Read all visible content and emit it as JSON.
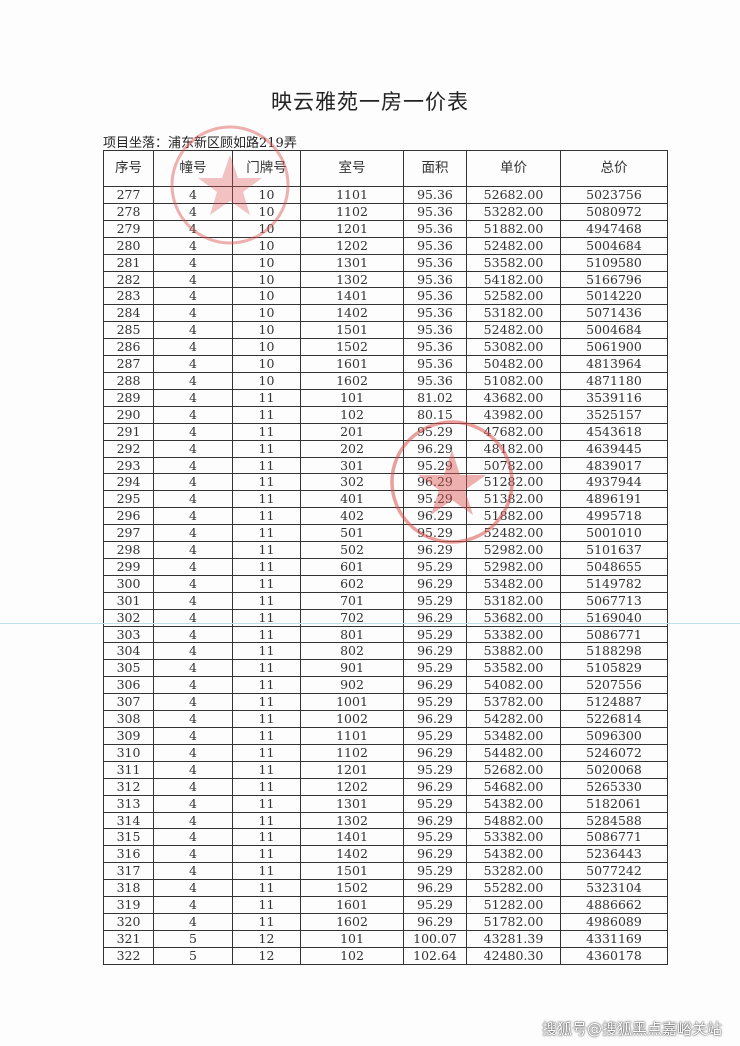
{
  "title": "映云雅苑一房一价表",
  "location": "项目坐落：浦东新区顾如路219弄",
  "columns": [
    "序号",
    "幢号",
    "门牌号",
    "室号",
    "面积",
    "单价",
    "总价"
  ],
  "rows": [
    [
      "277",
      "4",
      "10",
      "1101",
      "95.36",
      "52682.00",
      "5023756"
    ],
    [
      "278",
      "4",
      "10",
      "1102",
      "95.36",
      "53282.00",
      "5080972"
    ],
    [
      "279",
      "4",
      "10",
      "1201",
      "95.36",
      "51882.00",
      "4947468"
    ],
    [
      "280",
      "4",
      "10",
      "1202",
      "95.36",
      "52482.00",
      "5004684"
    ],
    [
      "281",
      "4",
      "10",
      "1301",
      "95.36",
      "53582.00",
      "5109580"
    ],
    [
      "282",
      "4",
      "10",
      "1302",
      "95.36",
      "54182.00",
      "5166796"
    ],
    [
      "283",
      "4",
      "10",
      "1401",
      "95.36",
      "52582.00",
      "5014220"
    ],
    [
      "284",
      "4",
      "10",
      "1402",
      "95.36",
      "53182.00",
      "5071436"
    ],
    [
      "285",
      "4",
      "10",
      "1501",
      "95.36",
      "52482.00",
      "5004684"
    ],
    [
      "286",
      "4",
      "10",
      "1502",
      "95.36",
      "53082.00",
      "5061900"
    ],
    [
      "287",
      "4",
      "10",
      "1601",
      "95.36",
      "50482.00",
      "4813964"
    ],
    [
      "288",
      "4",
      "10",
      "1602",
      "95.36",
      "51082.00",
      "4871180"
    ],
    [
      "289",
      "4",
      "11",
      "101",
      "81.02",
      "43682.00",
      "3539116"
    ],
    [
      "290",
      "4",
      "11",
      "102",
      "80.15",
      "43982.00",
      "3525157"
    ],
    [
      "291",
      "4",
      "11",
      "201",
      "95.29",
      "47682.00",
      "4543618"
    ],
    [
      "292",
      "4",
      "11",
      "202",
      "96.29",
      "48182.00",
      "4639445"
    ],
    [
      "293",
      "4",
      "11",
      "301",
      "95.29",
      "50782.00",
      "4839017"
    ],
    [
      "294",
      "4",
      "11",
      "302",
      "96.29",
      "51282.00",
      "4937944"
    ],
    [
      "295",
      "4",
      "11",
      "401",
      "95.29",
      "51382.00",
      "4896191"
    ],
    [
      "296",
      "4",
      "11",
      "402",
      "96.29",
      "51882.00",
      "4995718"
    ],
    [
      "297",
      "4",
      "11",
      "501",
      "95.29",
      "52482.00",
      "5001010"
    ],
    [
      "298",
      "4",
      "11",
      "502",
      "96.29",
      "52982.00",
      "5101637"
    ],
    [
      "299",
      "4",
      "11",
      "601",
      "95.29",
      "52982.00",
      "5048655"
    ],
    [
      "300",
      "4",
      "11",
      "602",
      "96.29",
      "53482.00",
      "5149782"
    ],
    [
      "301",
      "4",
      "11",
      "701",
      "95.29",
      "53182.00",
      "5067713"
    ],
    [
      "302",
      "4",
      "11",
      "702",
      "96.29",
      "53682.00",
      "5169040"
    ],
    [
      "303",
      "4",
      "11",
      "801",
      "95.29",
      "53382.00",
      "5086771"
    ],
    [
      "304",
      "4",
      "11",
      "802",
      "96.29",
      "53882.00",
      "5188298"
    ],
    [
      "305",
      "4",
      "11",
      "901",
      "95.29",
      "53582.00",
      "5105829"
    ],
    [
      "306",
      "4",
      "11",
      "902",
      "96.29",
      "54082.00",
      "5207556"
    ],
    [
      "307",
      "4",
      "11",
      "1001",
      "95.29",
      "53782.00",
      "5124887"
    ],
    [
      "308",
      "4",
      "11",
      "1002",
      "96.29",
      "54282.00",
      "5226814"
    ],
    [
      "309",
      "4",
      "11",
      "1101",
      "95.29",
      "53482.00",
      "5096300"
    ],
    [
      "310",
      "4",
      "11",
      "1102",
      "96.29",
      "54482.00",
      "5246072"
    ],
    [
      "311",
      "4",
      "11",
      "1201",
      "95.29",
      "52682.00",
      "5020068"
    ],
    [
      "312",
      "4",
      "11",
      "1202",
      "96.29",
      "54682.00",
      "5265330"
    ],
    [
      "313",
      "4",
      "11",
      "1301",
      "95.29",
      "54382.00",
      "5182061"
    ],
    [
      "314",
      "4",
      "11",
      "1302",
      "96.29",
      "54882.00",
      "5284588"
    ],
    [
      "315",
      "4",
      "11",
      "1401",
      "95.29",
      "53382.00",
      "5086771"
    ],
    [
      "316",
      "4",
      "11",
      "1402",
      "96.29",
      "54382.00",
      "5236443"
    ],
    [
      "317",
      "4",
      "11",
      "1501",
      "95.29",
      "53282.00",
      "5077242"
    ],
    [
      "318",
      "4",
      "11",
      "1502",
      "96.29",
      "55282.00",
      "5323104"
    ],
    [
      "319",
      "4",
      "11",
      "1601",
      "95.29",
      "51282.00",
      "4886662"
    ],
    [
      "320",
      "4",
      "11",
      "1602",
      "96.29",
      "51782.00",
      "4986089"
    ],
    [
      "321",
      "5",
      "12",
      "101",
      "100.07",
      "43281.39",
      "4331169"
    ],
    [
      "322",
      "5",
      "12",
      "102",
      "102.64",
      "42480.30",
      "4360178"
    ]
  ],
  "watermark": "搜狐号@搜狐黑点嘉峪关站",
  "colors": {
    "stamp": "#d9534f"
  }
}
